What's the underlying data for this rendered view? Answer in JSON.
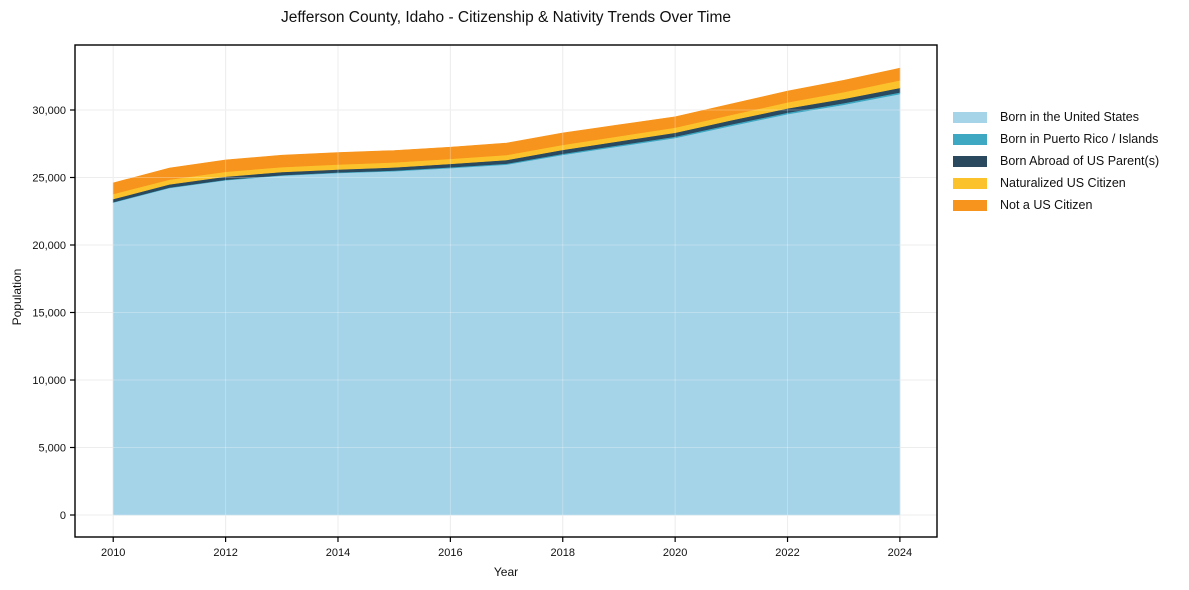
{
  "figure": {
    "background": "#ffffff",
    "grid_color": "#e7e7e7",
    "spine_color": "#000000"
  },
  "chart_data": {
    "type": "area",
    "stacked": true,
    "title": "Jefferson County, Idaho - Citizenship & Nativity Trends Over Time",
    "xlabel": "Year",
    "ylabel": "Population",
    "x": [
      2010,
      2011,
      2012,
      2013,
      2014,
      2015,
      2016,
      2017,
      2018,
      2019,
      2020,
      2021,
      2022,
      2023,
      2024
    ],
    "series": [
      {
        "name": "Born in the United States",
        "color": "#a5d3e8",
        "values": [
          23150,
          24230,
          24800,
          25140,
          25340,
          25470,
          25700,
          25960,
          26680,
          27310,
          27930,
          28830,
          29700,
          30390,
          31190
        ]
      },
      {
        "name": "Born in Puerto Rico / Islands",
        "color": "#3ea8c2",
        "values": [
          30,
          30,
          40,
          40,
          40,
          50,
          60,
          70,
          80,
          90,
          100,
          110,
          110,
          120,
          120
        ]
      },
      {
        "name": "Born Abroad of US Parent(s)",
        "color": "#2a485e",
        "values": [
          230,
          230,
          230,
          230,
          220,
          230,
          250,
          270,
          290,
          290,
          290,
          300,
          310,
          320,
          330
        ]
      },
      {
        "name": "Naturalized US Citizen",
        "color": "#fcc22c",
        "values": [
          370,
          360,
          360,
          360,
          370,
          370,
          370,
          370,
          370,
          370,
          380,
          400,
          450,
          500,
          560
        ]
      },
      {
        "name": "Not a US Citizen",
        "color": "#f7941d",
        "values": [
          820,
          850,
          870,
          880,
          880,
          880,
          870,
          880,
          880,
          840,
          800,
          810,
          830,
          870,
          900
        ]
      }
    ],
    "xticks": [
      2010,
      2012,
      2014,
      2016,
      2018,
      2020,
      2022,
      2024
    ],
    "xtick_labels": [
      "2010",
      "2012",
      "2014",
      "2016",
      "2018",
      "2020",
      "2022",
      "2024"
    ],
    "yticks": [
      0,
      5000,
      10000,
      15000,
      20000,
      25000,
      30000
    ],
    "ytick_labels": [
      "0",
      "5,000",
      "10,000",
      "15,000",
      "20,000",
      "25,000",
      "30,000"
    ],
    "xlim": [
      2009.32,
      2024.66
    ],
    "ylim": [
      -1630,
      34815
    ],
    "grid": true,
    "legend_position": "right"
  }
}
